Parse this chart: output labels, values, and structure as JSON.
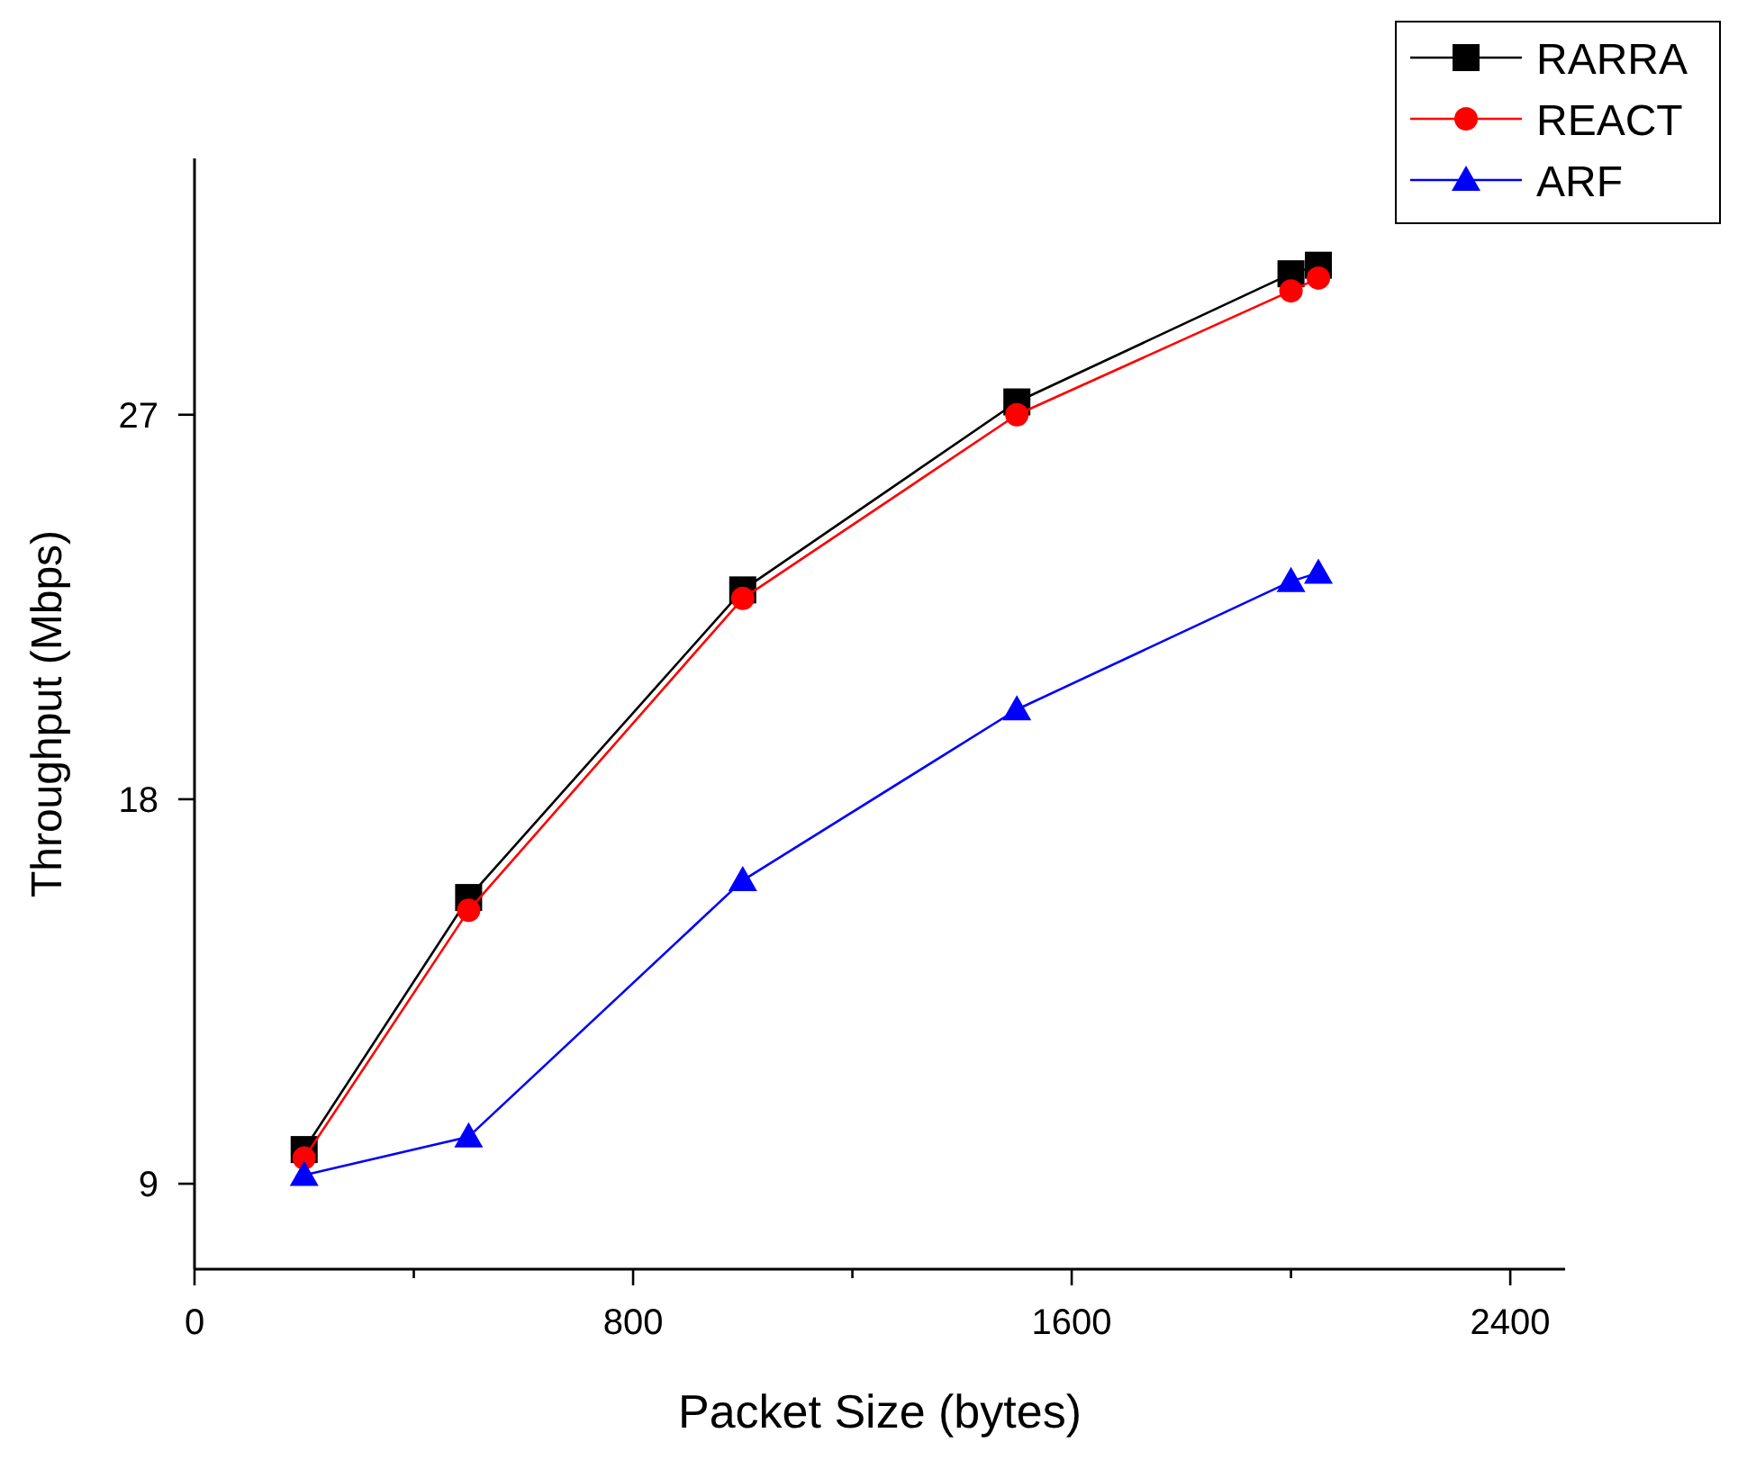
{
  "chart_data": {
    "type": "line",
    "xlabel": "Packet Size (bytes)",
    "ylabel": "Throughput (Mbps)",
    "xlim": [
      0,
      2500
    ],
    "xticks": [
      0,
      {
        "value": 400,
        "label": null
      },
      800,
      {
        "value": 1200,
        "label": null
      },
      1600,
      {
        "value": 2000,
        "label": null
      },
      2400
    ],
    "ylim": [
      7,
      33
    ],
    "yticks": [
      9,
      18,
      27
    ],
    "grid": false,
    "legend": "top right",
    "series": [
      {
        "name": "RARRA",
        "color": "#000000",
        "marker": "square",
        "x": [
          200,
          500,
          1000,
          1500,
          2000,
          2050
        ],
        "values": [
          9.8,
          15.7,
          22.9,
          27.3,
          30.3,
          30.5
        ]
      },
      {
        "name": "REACT",
        "color": "#ff0000",
        "marker": "circle",
        "x": [
          200,
          500,
          1000,
          1500,
          2000,
          2050
        ],
        "values": [
          9.6,
          15.4,
          22.7,
          27.0,
          29.9,
          30.2
        ]
      },
      {
        "name": "ARF",
        "color": "#0000ff",
        "marker": "triangle",
        "x": [
          200,
          500,
          1000,
          1500,
          2000,
          2050
        ],
        "values": [
          9.2,
          10.1,
          16.1,
          20.1,
          23.1,
          23.3
        ]
      }
    ]
  }
}
